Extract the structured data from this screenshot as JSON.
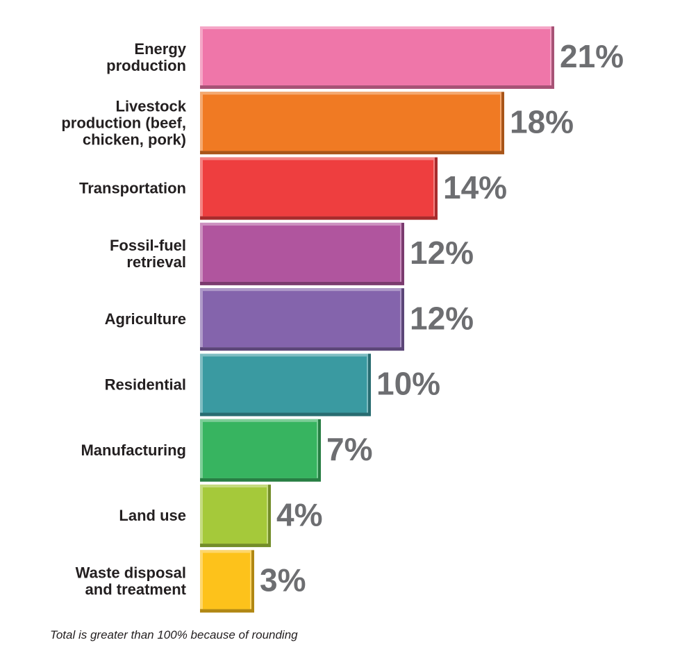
{
  "chart_data": {
    "type": "bar",
    "orientation": "horizontal",
    "categories": [
      "Energy\nproduction",
      "Livestock\nproduction (beef,\nchicken, pork)",
      "Transportation",
      "Fossil-fuel\nretrieval",
      "Agriculture",
      "Residential",
      "Manufacturing",
      "Land use",
      "Waste disposal\nand treatment"
    ],
    "values": [
      21,
      18,
      14,
      12,
      12,
      10,
      7,
      4,
      3
    ],
    "value_labels": [
      "21%",
      "18%",
      "14%",
      "12%",
      "12%",
      "10%",
      "7%",
      "4%",
      "3%"
    ],
    "colors": [
      "#ef76a9",
      "#f07a23",
      "#ee3e3f",
      "#b0559e",
      "#8464ac",
      "#3a9aa1",
      "#37b460",
      "#a5c93a",
      "#fdc21b"
    ],
    "note": "Total is greater than 100% because of rounding"
  }
}
